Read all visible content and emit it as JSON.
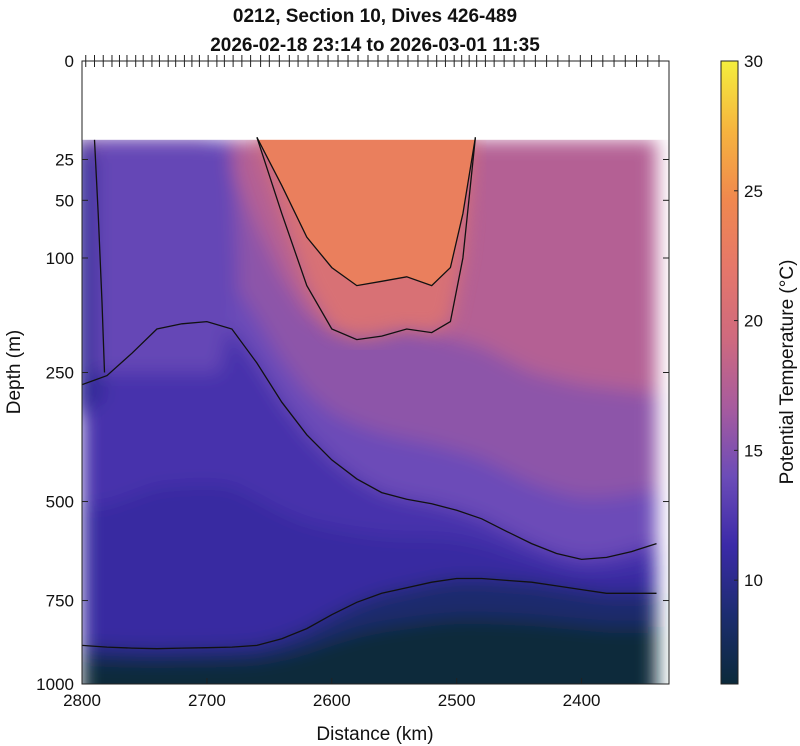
{
  "chart_data": {
    "type": "heatmap",
    "title": "0212, Section 10, Dives 426-489",
    "subtitle": "2026-02-18 23:14 to 2026-03-01 11:35",
    "xlabel": "Distance (km)",
    "ylabel": "Depth (m)",
    "colorbar_label": "Potential Temperature (°C)",
    "xlim": [
      2800,
      2330
    ],
    "ylim": [
      0,
      1000
    ],
    "x_reversed": true,
    "y_scale": "sqrt",
    "y_reversed": true,
    "x_ticks": [
      2800,
      2700,
      2600,
      2500,
      2400
    ],
    "x_tick_labels": [
      "2800",
      "2700",
      "2600",
      "2500",
      "2400"
    ],
    "y_ticks": [
      0,
      25,
      50,
      100,
      250,
      500,
      750,
      1000
    ],
    "y_tick_labels": [
      "0",
      "25",
      "50",
      "100",
      "250",
      "500",
      "750",
      "1000"
    ],
    "colorbar_range": [
      6,
      30
    ],
    "colorbar_ticks": [
      10,
      15,
      20,
      25,
      30
    ],
    "colorbar_tick_labels": [
      "10",
      "15",
      "20",
      "25",
      "30"
    ],
    "colormap": [
      "#0b2a3a",
      "#1c2c70",
      "#3b2aa8",
      "#6c4cb8",
      "#a75b9e",
      "#cf6a7e",
      "#e5776a",
      "#f0884e",
      "#f6b43e",
      "#f4ee3d"
    ],
    "data_top_depth": 16,
    "dive_positions_km": [
      2797,
      2790,
      2783,
      2776,
      2770,
      2764,
      2757,
      2751,
      2744,
      2738,
      2731,
      2725,
      2718,
      2712,
      2706,
      2699,
      2692,
      2686,
      2679,
      2672,
      2665,
      2657,
      2650,
      2642,
      2634,
      2627,
      2619,
      2611,
      2603,
      2595,
      2587,
      2579,
      2571,
      2563,
      2555,
      2547,
      2539,
      2531,
      2523,
      2516,
      2509,
      2502,
      2496,
      2490,
      2484,
      2477,
      2470,
      2462,
      2454,
      2446,
      2437,
      2428,
      2419,
      2410,
      2401,
      2392,
      2383,
      2374,
      2365,
      2356,
      2347,
      2338
    ],
    "isotherm_depths_m": {
      "x": [
        2800,
        2780,
        2760,
        2740,
        2720,
        2700,
        2680,
        2660,
        2640,
        2620,
        2600,
        2580,
        2560,
        2540,
        2520,
        2500,
        2480,
        2460,
        2440,
        2420,
        2400,
        2380,
        2360,
        2340
      ],
      "t10": [
        880,
        885,
        888,
        890,
        888,
        887,
        885,
        880,
        860,
        830,
        790,
        755,
        730,
        715,
        700,
        690,
        690,
        695,
        700,
        710,
        720,
        730,
        730,
        730
      ],
      "t12": [
        270,
        255,
        220,
        185,
        178,
        175,
        185,
        235,
        300,
        360,
        410,
        450,
        480,
        495,
        505,
        520,
        540,
        570,
        600,
        625,
        640,
        635,
        620,
        600
      ],
      "t18": [
        15,
        15,
        15,
        15,
        15,
        15,
        30,
        70,
        120,
        165,
        185,
        180,
        175,
        180,
        190,
        200,
        210,
        230,
        250,
        260,
        270,
        275,
        280,
        285
      ]
    },
    "warm_core": {
      "x": [
        2660,
        2640,
        2620,
        2600,
        2580,
        2560,
        2540,
        2520,
        2505,
        2495,
        2485
      ],
      "t22_depth": [
        15,
        40,
        80,
        110,
        130,
        125,
        120,
        130,
        110,
        60,
        15
      ],
      "t20_depth": [
        15,
        60,
        130,
        185,
        200,
        195,
        185,
        190,
        175,
        100,
        15
      ]
    }
  }
}
